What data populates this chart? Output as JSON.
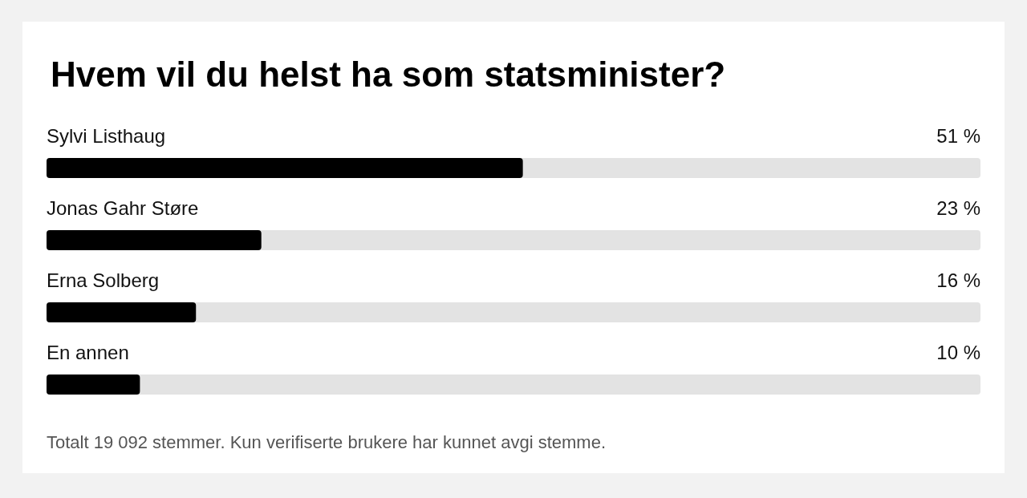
{
  "chart_data": {
    "type": "bar",
    "orientation": "horizontal",
    "title": "Hvem vil du helst ha som statsminister?",
    "categories": [
      "Sylvi Listhaug",
      "Jonas Gahr Støre",
      "Erna Solberg",
      "En annen"
    ],
    "values": [
      51,
      23,
      16,
      10
    ],
    "value_labels": [
      "51 %",
      "23 %",
      "16 %",
      "10 %"
    ],
    "color": "#000000",
    "xlim": [
      0,
      100
    ],
    "tick_labels": false,
    "annotations": [
      "Totalt 19 092 stemmer. Kun verifiserte brukere har kunnet avgi stemme."
    ]
  }
}
